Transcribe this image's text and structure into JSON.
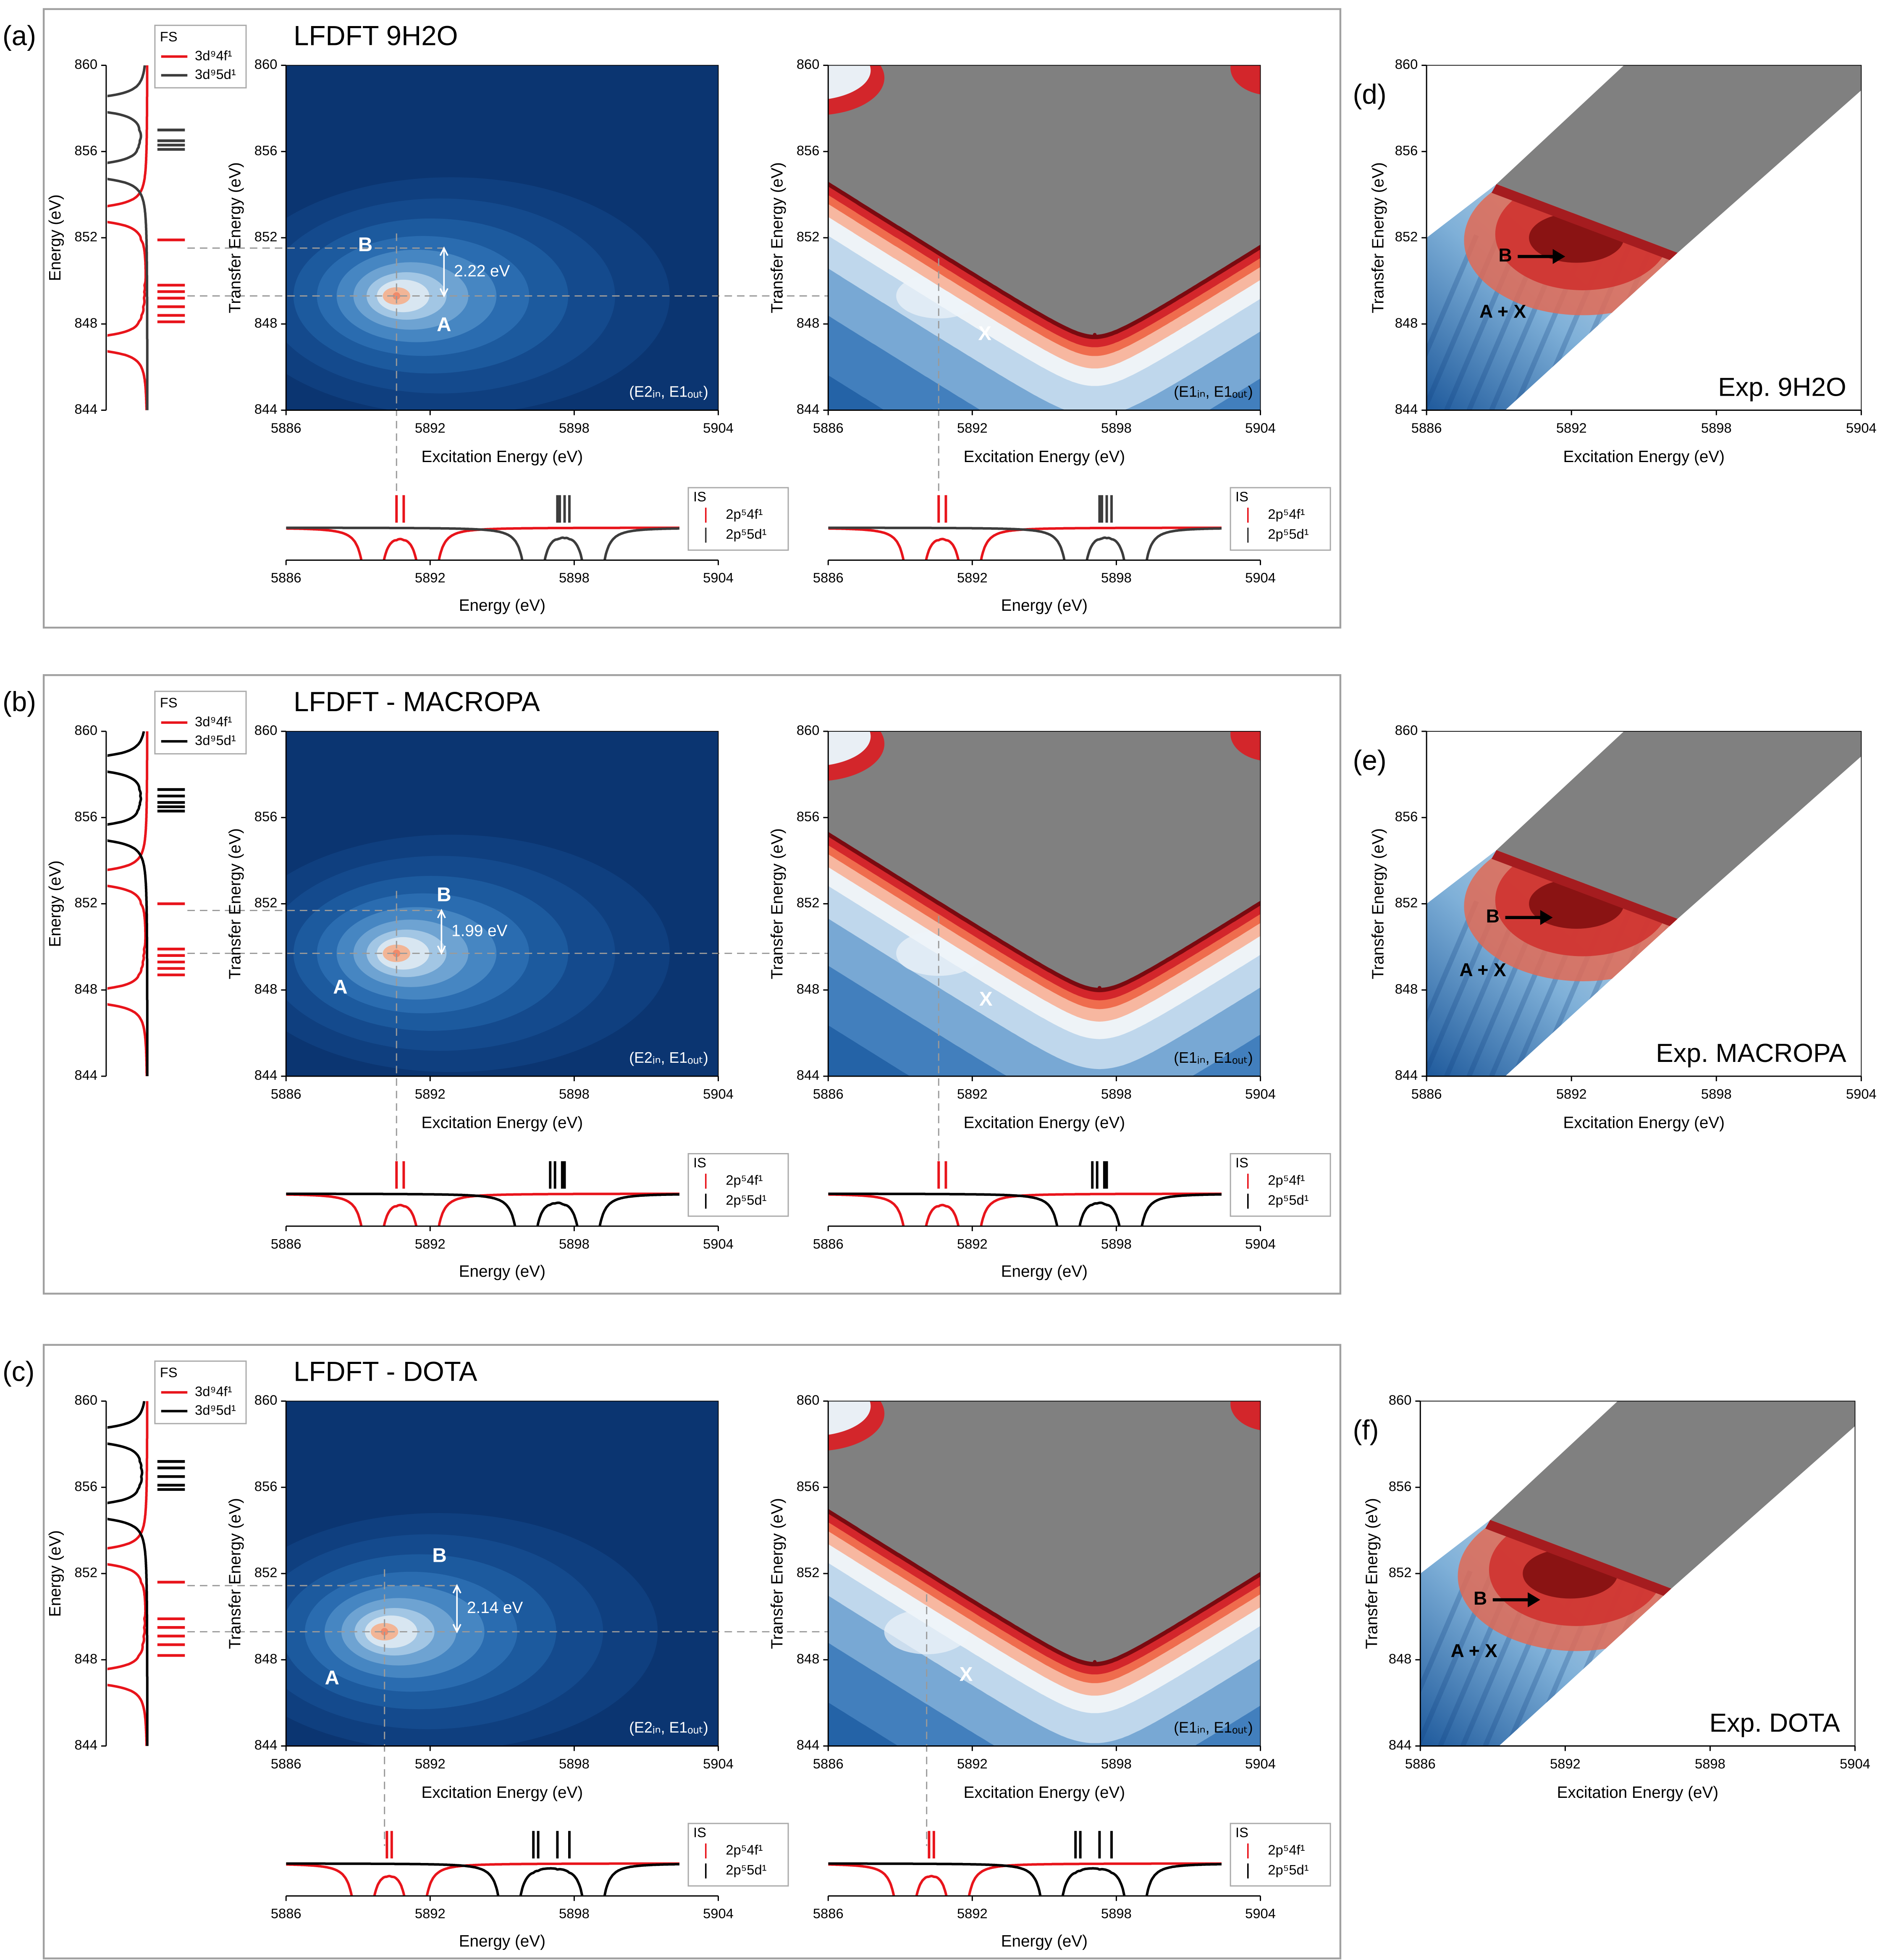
{
  "chart_data": [
    {
      "type": "rixs_row",
      "panel_label": "(a)",
      "title": "LFDFT 9H2O",
      "fs": {
        "legend_title": "FS",
        "ylabel": "Energy (eV)",
        "ylim": [
          844,
          860
        ],
        "yticks": [
          844,
          848,
          852,
          856,
          860
        ],
        "series": [
          {
            "name": "3d⁹4f¹",
            "color": "#e8141b",
            "values": [
              851.9,
              849.8,
              849.5,
              849.2,
              848.8,
              848.4,
              848.1
            ]
          },
          {
            "name": "3d⁹5d¹",
            "color": "#3c3c3c",
            "values": [
              857.0,
              856.5,
              856.3,
              856.1
            ]
          }
        ]
      },
      "e2": {
        "xlabel": "Excitation Energy (eV)",
        "ylabel": "Transfer Energy (eV)",
        "xlim": [
          5886,
          5904
        ],
        "xticks": [
          5886,
          5892,
          5898,
          5904
        ],
        "ylim": [
          844,
          860
        ],
        "yticks": [
          844,
          848,
          852,
          856,
          860
        ],
        "corner_label": "(E2ᵢₙ, E1ₒᵤₜ)",
        "peak": {
          "x": 5890.6,
          "y": 849.3
        },
        "splitting": {
          "value": 2.22,
          "label": "2.22 eV"
        },
        "labels": {
          "a": "A",
          "b": "B"
        }
      },
      "e1": {
        "xlabel": "Excitation Energy (eV)",
        "ylabel": "Transfer Energy (eV)",
        "xlim": [
          5886,
          5904
        ],
        "xticks": [
          5886,
          5892,
          5898,
          5904
        ],
        "ylim": [
          844,
          860
        ],
        "yticks": [
          844,
          848,
          852,
          856,
          860
        ],
        "corner_label": "(E1ᵢₙ, E1ₒᵤₜ)",
        "valley": {
          "x": 5897.1,
          "y": 847.5
        },
        "label": "X"
      },
      "is": {
        "legend_title": "IS",
        "xlabel": "Energy (eV)",
        "xlim": [
          5886,
          5904
        ],
        "xticks": [
          5886,
          5892,
          5898,
          5904
        ],
        "series": [
          {
            "name": "2p⁵4f¹",
            "color": "#e8141b",
            "values": [
              5890.6,
              5890.9
            ]
          },
          {
            "name": "2p⁵5d¹",
            "color": "#3c3c3c",
            "values": [
              5897.3,
              5897.4,
              5897.6,
              5897.8
            ]
          }
        ]
      },
      "exp": {
        "panel_label": "(d)",
        "title": "Exp. 9H2O",
        "xlabel": "Excitation Energy (eV)",
        "ylabel": "Transfer Energy (eV)",
        "xlim": [
          5886,
          5904
        ],
        "xticks": [
          5886,
          5892,
          5898,
          5904
        ],
        "ylim": [
          844,
          860
        ],
        "yticks": [
          844,
          848,
          852,
          856,
          860
        ],
        "labels": {
          "b": "B",
          "ax": "A + X"
        }
      }
    },
    {
      "type": "rixs_row",
      "panel_label": "(b)",
      "title": "LFDFT - MACROPA",
      "fs": {
        "legend_title": "FS",
        "ylabel": "Energy (eV)",
        "ylim": [
          844,
          860
        ],
        "yticks": [
          844,
          848,
          852,
          856,
          860
        ],
        "series": [
          {
            "name": "3d⁹4f¹",
            "color": "#e8141b",
            "values": [
              852.0,
              849.9,
              849.6,
              849.3,
              849.0,
              848.7
            ]
          },
          {
            "name": "3d⁹5d¹",
            "color": "#000000",
            "values": [
              857.3,
              857.0,
              856.7,
              856.5,
              856.3
            ]
          }
        ]
      },
      "e2": {
        "xlabel": "Excitation Energy (eV)",
        "ylabel": "Transfer Energy (eV)",
        "xlim": [
          5886,
          5904
        ],
        "xticks": [
          5886,
          5892,
          5898,
          5904
        ],
        "ylim": [
          844,
          860
        ],
        "yticks": [
          844,
          848,
          852,
          856,
          860
        ],
        "corner_label": "(E2ᵢₙ, E1ₒᵤₜ)",
        "peak": {
          "x": 5890.6,
          "y": 849.7
        },
        "splitting": {
          "value": 1.99,
          "label": "1.99 eV"
        },
        "labels": {
          "a": "A",
          "b": "B"
        }
      },
      "e1": {
        "xlabel": "Excitation Energy (eV)",
        "ylabel": "Transfer Energy (eV)",
        "xlim": [
          5886,
          5904
        ],
        "xticks": [
          5886,
          5892,
          5898,
          5904
        ],
        "ylim": [
          844,
          860
        ],
        "yticks": [
          844,
          848,
          852,
          856,
          860
        ],
        "corner_label": "(E1ᵢₙ, E1ₒᵤₜ)",
        "valley": {
          "x": 5897.3,
          "y": 848.1
        },
        "label": "X"
      },
      "is": {
        "legend_title": "IS",
        "xlabel": "Energy (eV)",
        "xlim": [
          5886,
          5904
        ],
        "xticks": [
          5886,
          5892,
          5898,
          5904
        ],
        "series": [
          {
            "name": "2p⁵4f¹",
            "color": "#e8141b",
            "values": [
              5890.6,
              5890.9
            ]
          },
          {
            "name": "2p⁵5d¹",
            "color": "#000000",
            "values": [
              5897.0,
              5897.2,
              5897.5,
              5897.6
            ]
          }
        ]
      },
      "exp": {
        "panel_label": "(e)",
        "title": "Exp. MACROPA",
        "xlabel": "Excitation Energy (eV)",
        "ylabel": "Transfer Energy (eV)",
        "xlim": [
          5886,
          5904
        ],
        "xticks": [
          5886,
          5892,
          5898,
          5904
        ],
        "ylim": [
          844,
          860
        ],
        "yticks": [
          844,
          848,
          852,
          856,
          860
        ],
        "labels": {
          "b": "B",
          "ax": "A + X"
        }
      }
    },
    {
      "type": "rixs_row",
      "panel_label": "(c)",
      "title": "LFDFT - DOTA",
      "fs": {
        "legend_title": "FS",
        "ylabel": "Energy (eV)",
        "ylim": [
          844,
          860
        ],
        "yticks": [
          844,
          848,
          852,
          856,
          860
        ],
        "series": [
          {
            "name": "3d⁹4f¹",
            "color": "#e8141b",
            "values": [
              851.6,
              849.9,
              849.5,
              849.1,
              848.7,
              848.2
            ]
          },
          {
            "name": "3d⁹5d¹",
            "color": "#000000",
            "values": [
              857.2,
              856.9,
              856.5,
              856.1,
              855.9
            ]
          }
        ]
      },
      "e2": {
        "xlabel": "Excitation Energy (eV)",
        "ylabel": "Transfer Energy (eV)",
        "xlim": [
          5886,
          5904
        ],
        "xticks": [
          5886,
          5892,
          5898,
          5904
        ],
        "ylim": [
          844,
          860
        ],
        "yticks": [
          844,
          848,
          852,
          856,
          860
        ],
        "corner_label": "(E2ᵢₙ, E1ₒᵤₜ)",
        "peak": {
          "x": 5890.1,
          "y": 849.3
        },
        "splitting": {
          "value": 2.14,
          "label": "2.14 eV"
        },
        "labels": {
          "a": "A",
          "b": "B"
        }
      },
      "e1": {
        "xlabel": "Excitation Energy (eV)",
        "ylabel": "Transfer Energy (eV)",
        "xlim": [
          5886,
          5904
        ],
        "xticks": [
          5886,
          5892,
          5898,
          5904
        ],
        "ylim": [
          844,
          860
        ],
        "yticks": [
          844,
          848,
          852,
          856,
          860
        ],
        "corner_label": "(E1ᵢₙ, E1ₒᵤₜ)",
        "valley": {
          "x": 5897.1,
          "y": 847.9
        },
        "label": "X"
      },
      "is": {
        "legend_title": "IS",
        "xlabel": "Energy (eV)",
        "xlim": [
          5886,
          5904
        ],
        "xticks": [
          5886,
          5892,
          5898,
          5904
        ],
        "series": [
          {
            "name": "2p⁵4f¹",
            "color": "#e8141b",
            "values": [
              5890.2,
              5890.4
            ]
          },
          {
            "name": "2p⁵5d¹",
            "color": "#000000",
            "values": [
              5896.3,
              5896.5,
              5897.3,
              5897.8
            ]
          }
        ]
      },
      "exp": {
        "panel_label": "(f)",
        "title": "Exp. DOTA",
        "xlabel": "Excitation Energy (eV)",
        "ylabel": "Transfer Energy (eV)",
        "xlim": [
          5886,
          5904
        ],
        "xticks": [
          5886,
          5892,
          5898,
          5904
        ],
        "ylim": [
          844,
          860
        ],
        "yticks": [
          844,
          848,
          852,
          856,
          860
        ],
        "labels": {
          "b": "B",
          "ax": "A + X"
        }
      }
    }
  ]
}
